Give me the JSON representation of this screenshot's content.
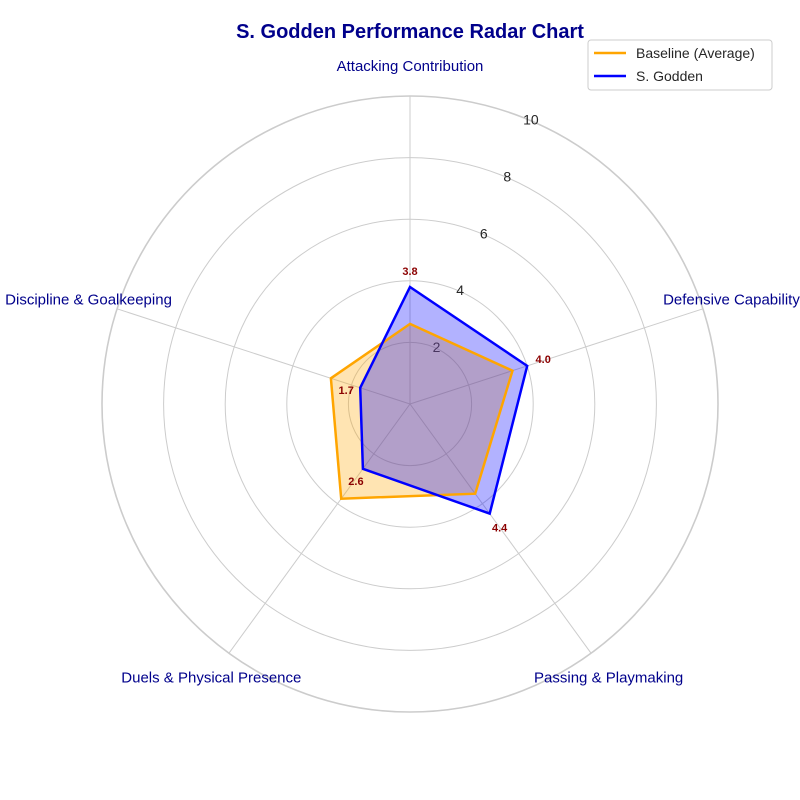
{
  "chart_data": {
    "type": "radar",
    "title": "S. Godden Performance Radar Chart",
    "categories": [
      "Attacking Contribution",
      "Defensive Capability",
      "Passing & Playmaking",
      "Duels & Physical Presence",
      "Discipline & Goalkeeping"
    ],
    "series": [
      {
        "name": "Baseline (Average)",
        "values": [
          2.6,
          3.5,
          3.6,
          3.8,
          2.7
        ],
        "color": "#FFA500",
        "fill": "#FFA500",
        "fill_opacity": 0.3
      },
      {
        "name": "S. Godden",
        "values": [
          3.8,
          4.0,
          4.4,
          2.6,
          1.7
        ],
        "color": "#0000FF",
        "fill": "#0000FF",
        "fill_opacity": 0.3
      }
    ],
    "value_labels": [
      "3.8",
      "4.0",
      "4.4",
      "2.6",
      "1.7"
    ],
    "rlim": [
      0,
      10
    ],
    "rticks": [
      2,
      4,
      6,
      8,
      10
    ],
    "tick_labels": [
      "2",
      "4",
      "6",
      "8",
      "10"
    ],
    "grid": true,
    "legend_position": "top-right",
    "colors": {
      "title": "#00008B",
      "category_label": "#00008B",
      "value_label": "#8B0000",
      "grid": "#cccccc"
    }
  }
}
